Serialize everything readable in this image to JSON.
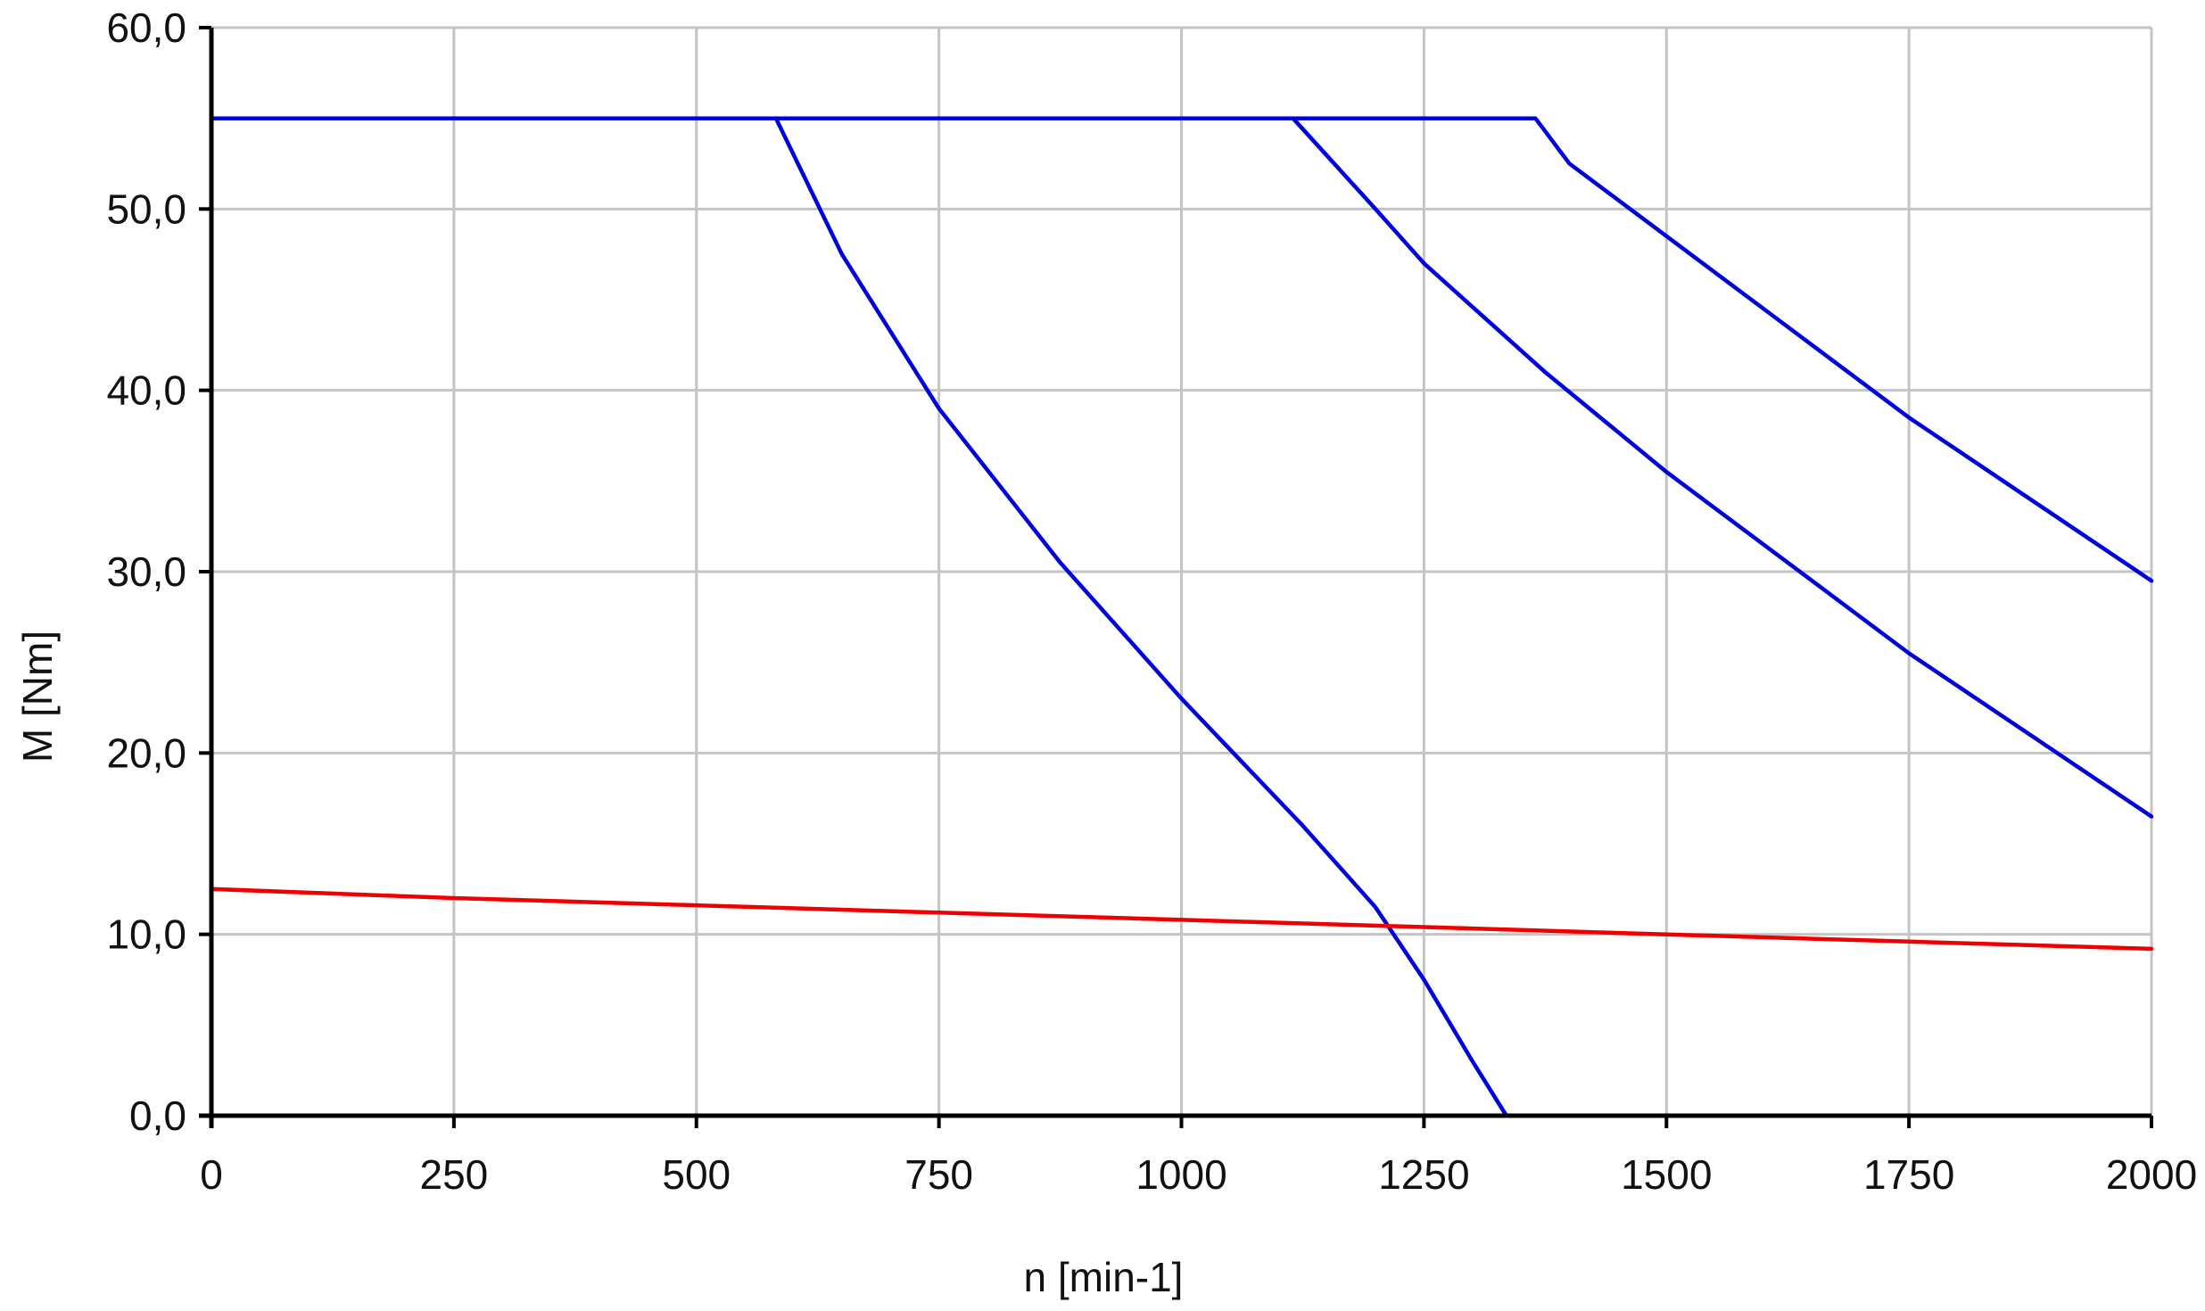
{
  "chart_data": {
    "type": "line",
    "title": "",
    "xlabel": "n [min-1]",
    "ylabel": "M [Nm]",
    "xlim": [
      0,
      2000
    ],
    "ylim": [
      0,
      60
    ],
    "x_ticks": [
      0,
      250,
      500,
      750,
      1000,
      1250,
      1500,
      1750,
      2000
    ],
    "x_tick_labels": [
      "0",
      "250",
      "500",
      "750",
      "1000",
      "1250",
      "1500",
      "1750",
      "2000"
    ],
    "y_ticks": [
      0,
      10,
      20,
      30,
      40,
      50,
      60
    ],
    "y_tick_labels": [
      "0,0",
      "10,0",
      "20,0",
      "30,0",
      "40,0",
      "50,0",
      "60,0"
    ],
    "grid": true,
    "legend": "none",
    "series": [
      {
        "color": "#0000dd",
        "points": [
          [
            0,
            55
          ],
          [
            582,
            55
          ],
          [
            650,
            47.5
          ],
          [
            750,
            39
          ],
          [
            875,
            30.5
          ],
          [
            1000,
            23
          ],
          [
            1125,
            16
          ],
          [
            1200,
            11.5
          ],
          [
            1250,
            7.5
          ],
          [
            1300,
            3
          ],
          [
            1335,
            0
          ]
        ]
      },
      {
        "color": "#0000dd",
        "points": [
          [
            0,
            55
          ],
          [
            1115,
            55
          ],
          [
            1200,
            50
          ],
          [
            1250,
            47
          ],
          [
            1375,
            41
          ],
          [
            1500,
            35.5
          ],
          [
            1625,
            30.5
          ],
          [
            1750,
            25.5
          ],
          [
            1875,
            21
          ],
          [
            2000,
            16.5
          ]
        ]
      },
      {
        "color": "#0000dd",
        "points": [
          [
            0,
            55
          ],
          [
            1365,
            55
          ],
          [
            1400,
            52.5
          ],
          [
            1500,
            48.5
          ],
          [
            1625,
            43.5
          ],
          [
            1750,
            38.5
          ],
          [
            1875,
            34
          ],
          [
            2000,
            29.5
          ]
        ]
      },
      {
        "color": "#ee0000",
        "points": [
          [
            0,
            12.5
          ],
          [
            250,
            12
          ],
          [
            500,
            11.6
          ],
          [
            750,
            11.2
          ],
          [
            1000,
            10.8
          ],
          [
            1250,
            10.4
          ],
          [
            1500,
            10
          ],
          [
            1750,
            9.6
          ],
          [
            2000,
            9.2
          ]
        ]
      }
    ]
  }
}
